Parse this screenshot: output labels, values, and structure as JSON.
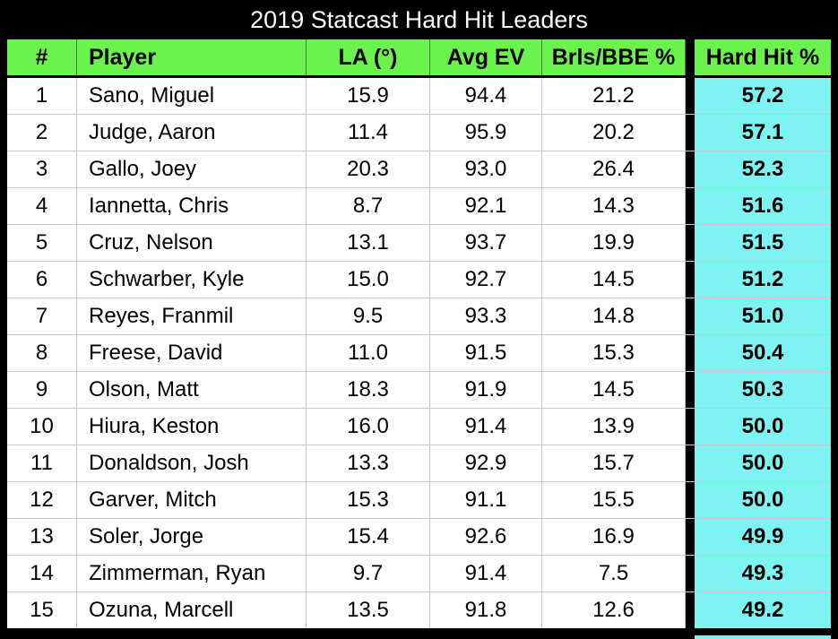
{
  "title": "2019 Statcast Hard Hit Leaders",
  "colors": {
    "background": "#000000",
    "header_green": "#6CF24E",
    "highlight_cyan": "#7FF2F2",
    "row_line": "#C9C9C9",
    "title_text": "#FFFFFF",
    "table_text": "#000000"
  },
  "chart_data": {
    "type": "table",
    "title": "2019 Statcast Hard Hit Leaders",
    "columns": [
      "#",
      "Player",
      "LA (°)",
      "Avg EV",
      "Brls/BBE %",
      "Hard Hit %"
    ],
    "highlighted_column": "Hard Hit %",
    "rows": [
      [
        "1",
        "Sano, Miguel",
        "15.9",
        "94.4",
        "21.2",
        "57.2"
      ],
      [
        "2",
        "Judge, Aaron",
        "11.4",
        "95.9",
        "20.2",
        "57.1"
      ],
      [
        "3",
        "Gallo, Joey",
        "20.3",
        "93.0",
        "26.4",
        "52.3"
      ],
      [
        "4",
        "Iannetta, Chris",
        "8.7",
        "92.1",
        "14.3",
        "51.6"
      ],
      [
        "5",
        "Cruz, Nelson",
        "13.1",
        "93.7",
        "19.9",
        "51.5"
      ],
      [
        "6",
        "Schwarber, Kyle",
        "15.0",
        "92.7",
        "14.5",
        "51.2"
      ],
      [
        "7",
        "Reyes, Franmil",
        "9.5",
        "93.3",
        "14.8",
        "51.0"
      ],
      [
        "8",
        "Freese, David",
        "11.0",
        "91.5",
        "15.3",
        "50.4"
      ],
      [
        "9",
        "Olson, Matt",
        "18.3",
        "91.9",
        "14.5",
        "50.3"
      ],
      [
        "10",
        "Hiura, Keston",
        "16.0",
        "91.4",
        "13.9",
        "50.0"
      ],
      [
        "11",
        "Donaldson, Josh",
        "13.3",
        "92.9",
        "15.7",
        "50.0"
      ],
      [
        "12",
        "Garver, Mitch",
        "15.3",
        "91.1",
        "15.5",
        "50.0"
      ],
      [
        "13",
        "Soler, Jorge",
        "15.4",
        "92.6",
        "16.9",
        "49.9"
      ],
      [
        "14",
        "Zimmerman, Ryan",
        "9.7",
        "91.4",
        "7.5",
        "49.3"
      ],
      [
        "15",
        "Ozuna, Marcell",
        "13.5",
        "91.8",
        "12.6",
        "49.2"
      ]
    ]
  }
}
